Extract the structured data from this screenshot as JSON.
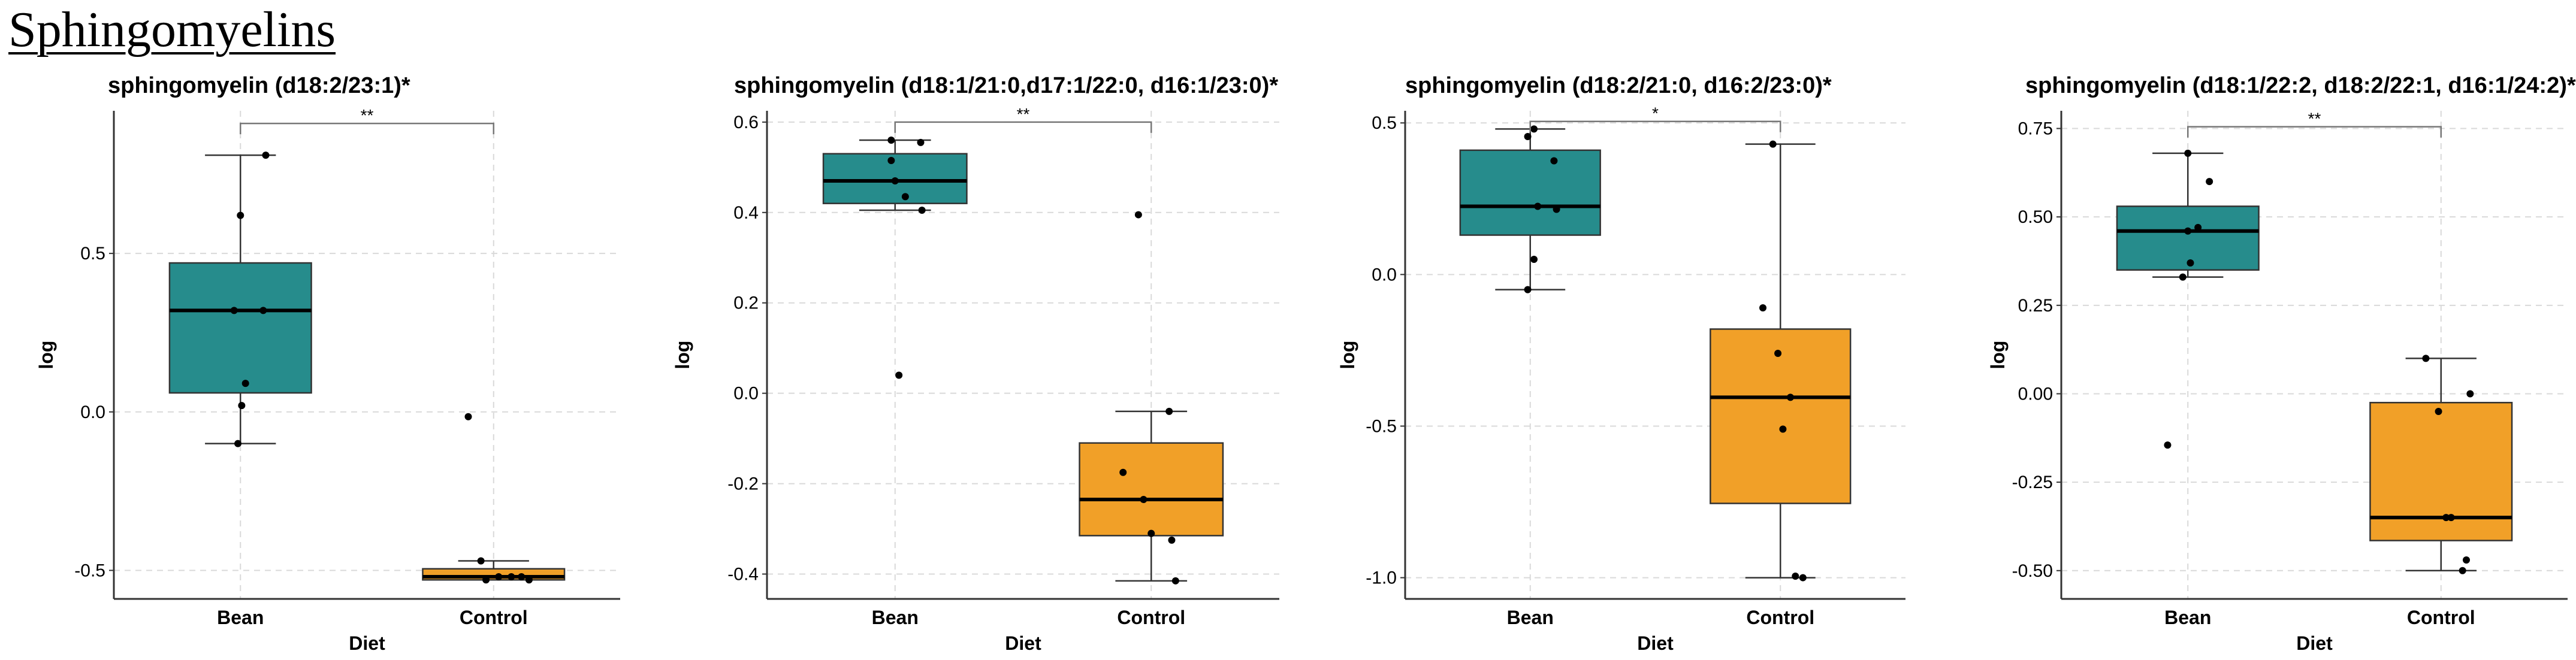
{
  "section_title": "Sphingomyelins",
  "colors": {
    "bean": "#268C8C",
    "control": "#F1A028",
    "grid": "#d9d9d9"
  },
  "chart_data": [
    {
      "type": "box",
      "title": "sphingomyelin (d18:2/23:1)*",
      "xlabel": "Diet",
      "ylabel": "log",
      "ylim": [
        -0.59,
        0.95
      ],
      "yticks": [
        -0.5,
        0.0,
        0.5
      ],
      "ytick_labels": [
        "-0.5",
        "0.0",
        "0.5"
      ],
      "categories": [
        "Bean",
        "Control"
      ],
      "boxes": [
        {
          "category": "Bean",
          "whisker_low": -0.1,
          "q1": 0.06,
          "median": 0.32,
          "q3": 0.47,
          "whisker_high": 0.81
        },
        {
          "category": "Control",
          "whisker_low": -0.53,
          "q1": -0.53,
          "median": -0.52,
          "q3": -0.495,
          "whisker_high": -0.47
        }
      ],
      "points": [
        {
          "category": "Bean",
          "values": [
            0.81,
            0.62,
            0.32,
            0.32,
            0.09,
            0.02,
            -0.1
          ],
          "jitter": [
            0.2,
            0.0,
            -0.05,
            0.18,
            0.04,
            0.01,
            -0.02
          ]
        },
        {
          "category": "Control",
          "values": [
            -0.015,
            -0.47,
            -0.52,
            -0.52,
            -0.52,
            -0.53,
            -0.53
          ],
          "jitter": [
            -0.2,
            -0.1,
            0.04,
            0.14,
            0.22,
            0.28,
            -0.06
          ]
        }
      ],
      "significance": {
        "label": "**",
        "y": 0.91
      }
    },
    {
      "type": "box",
      "title": "sphingomyelin (d18:1/21:0,d17:1/22:0, d16:1/23:0)*",
      "xlabel": "Diet",
      "ylabel": "log",
      "ylim": [
        -0.455,
        0.625
      ],
      "yticks": [
        -0.4,
        -0.2,
        0.0,
        0.2,
        0.4,
        0.6
      ],
      "ytick_labels": [
        "-0.4",
        "-0.2",
        "0.0",
        "0.2",
        "0.4",
        "0.6"
      ],
      "categories": [
        "Bean",
        "Control"
      ],
      "boxes": [
        {
          "category": "Bean",
          "whisker_low": 0.405,
          "q1": 0.42,
          "median": 0.47,
          "q3": 0.53,
          "whisker_high": 0.56
        },
        {
          "category": "Control",
          "whisker_low": -0.415,
          "q1": -0.315,
          "median": -0.235,
          "q3": -0.11,
          "whisker_high": -0.04
        }
      ],
      "points": [
        {
          "category": "Bean",
          "values": [
            0.56,
            0.555,
            0.515,
            0.47,
            0.435,
            0.405,
            0.04
          ],
          "jitter": [
            -0.03,
            0.2,
            -0.03,
            0.0,
            0.08,
            0.21,
            0.03
          ]
        },
        {
          "category": "Control",
          "values": [
            0.395,
            -0.04,
            -0.175,
            -0.235,
            -0.31,
            -0.325,
            -0.415
          ],
          "jitter": [
            -0.1,
            0.14,
            -0.22,
            -0.06,
            0.0,
            0.16,
            0.19
          ]
        }
      ],
      "significance": {
        "label": "**",
        "y": 0.6
      }
    },
    {
      "type": "box",
      "title": "sphingomyelin (d18:2/21:0, d16:2/23:0)*",
      "xlabel": "Diet",
      "ylabel": "log",
      "ylim": [
        -1.07,
        0.54
      ],
      "yticks": [
        -1.0,
        -0.5,
        0.0,
        0.5
      ],
      "ytick_labels": [
        "-1.0",
        "-0.5",
        "0.0",
        "0.5"
      ],
      "categories": [
        "Bean",
        "Control"
      ],
      "boxes": [
        {
          "category": "Bean",
          "whisker_low": -0.05,
          "q1": 0.13,
          "median": 0.225,
          "q3": 0.41,
          "whisker_high": 0.48
        },
        {
          "category": "Control",
          "whisker_low": -1.0,
          "q1": -0.755,
          "median": -0.405,
          "q3": -0.18,
          "whisker_high": 0.43
        }
      ],
      "points": [
        {
          "category": "Bean",
          "values": [
            0.48,
            0.455,
            0.375,
            0.225,
            0.215,
            0.05,
            -0.05
          ],
          "jitter": [
            0.03,
            -0.02,
            0.19,
            0.06,
            0.21,
            0.03,
            -0.02
          ]
        },
        {
          "category": "Control",
          "values": [
            0.43,
            -0.11,
            -0.26,
            -0.405,
            -0.51,
            -0.995,
            -1.0
          ],
          "jitter": [
            -0.06,
            -0.14,
            -0.02,
            0.08,
            0.02,
            0.12,
            0.18
          ]
        }
      ],
      "significance": {
        "label": "*",
        "y": 0.505
      }
    },
    {
      "type": "box",
      "title": "sphingomyelin (d18:1/22:2, d18:2/22:1, d16:1/24:2)*",
      "xlabel": "Diet",
      "ylabel": "log",
      "ylim": [
        -0.58,
        0.8
      ],
      "yticks": [
        -0.5,
        -0.25,
        0.0,
        0.25,
        0.5,
        0.75
      ],
      "ytick_labels": [
        "-0.50",
        "-0.25",
        "0.00",
        "0.25",
        "0.50",
        "0.75"
      ],
      "categories": [
        "Bean",
        "Control"
      ],
      "boxes": [
        {
          "category": "Bean",
          "whisker_low": 0.33,
          "q1": 0.35,
          "median": 0.46,
          "q3": 0.53,
          "whisker_high": 0.68
        },
        {
          "category": "Control",
          "whisker_low": -0.5,
          "q1": -0.415,
          "median": -0.35,
          "q3": -0.025,
          "whisker_high": 0.1
        }
      ],
      "points": [
        {
          "category": "Bean",
          "values": [
            0.68,
            0.6,
            0.47,
            0.46,
            0.37,
            0.33,
            -0.145
          ],
          "jitter": [
            0.0,
            0.17,
            0.08,
            0.0,
            0.02,
            -0.04,
            -0.16
          ]
        },
        {
          "category": "Control",
          "values": [
            0.1,
            0.0,
            -0.05,
            -0.35,
            -0.35,
            -0.47,
            -0.5
          ],
          "jitter": [
            -0.12,
            0.23,
            -0.02,
            0.04,
            0.08,
            0.2,
            0.17
          ]
        }
      ],
      "significance": {
        "label": "**",
        "y": 0.755
      }
    }
  ]
}
